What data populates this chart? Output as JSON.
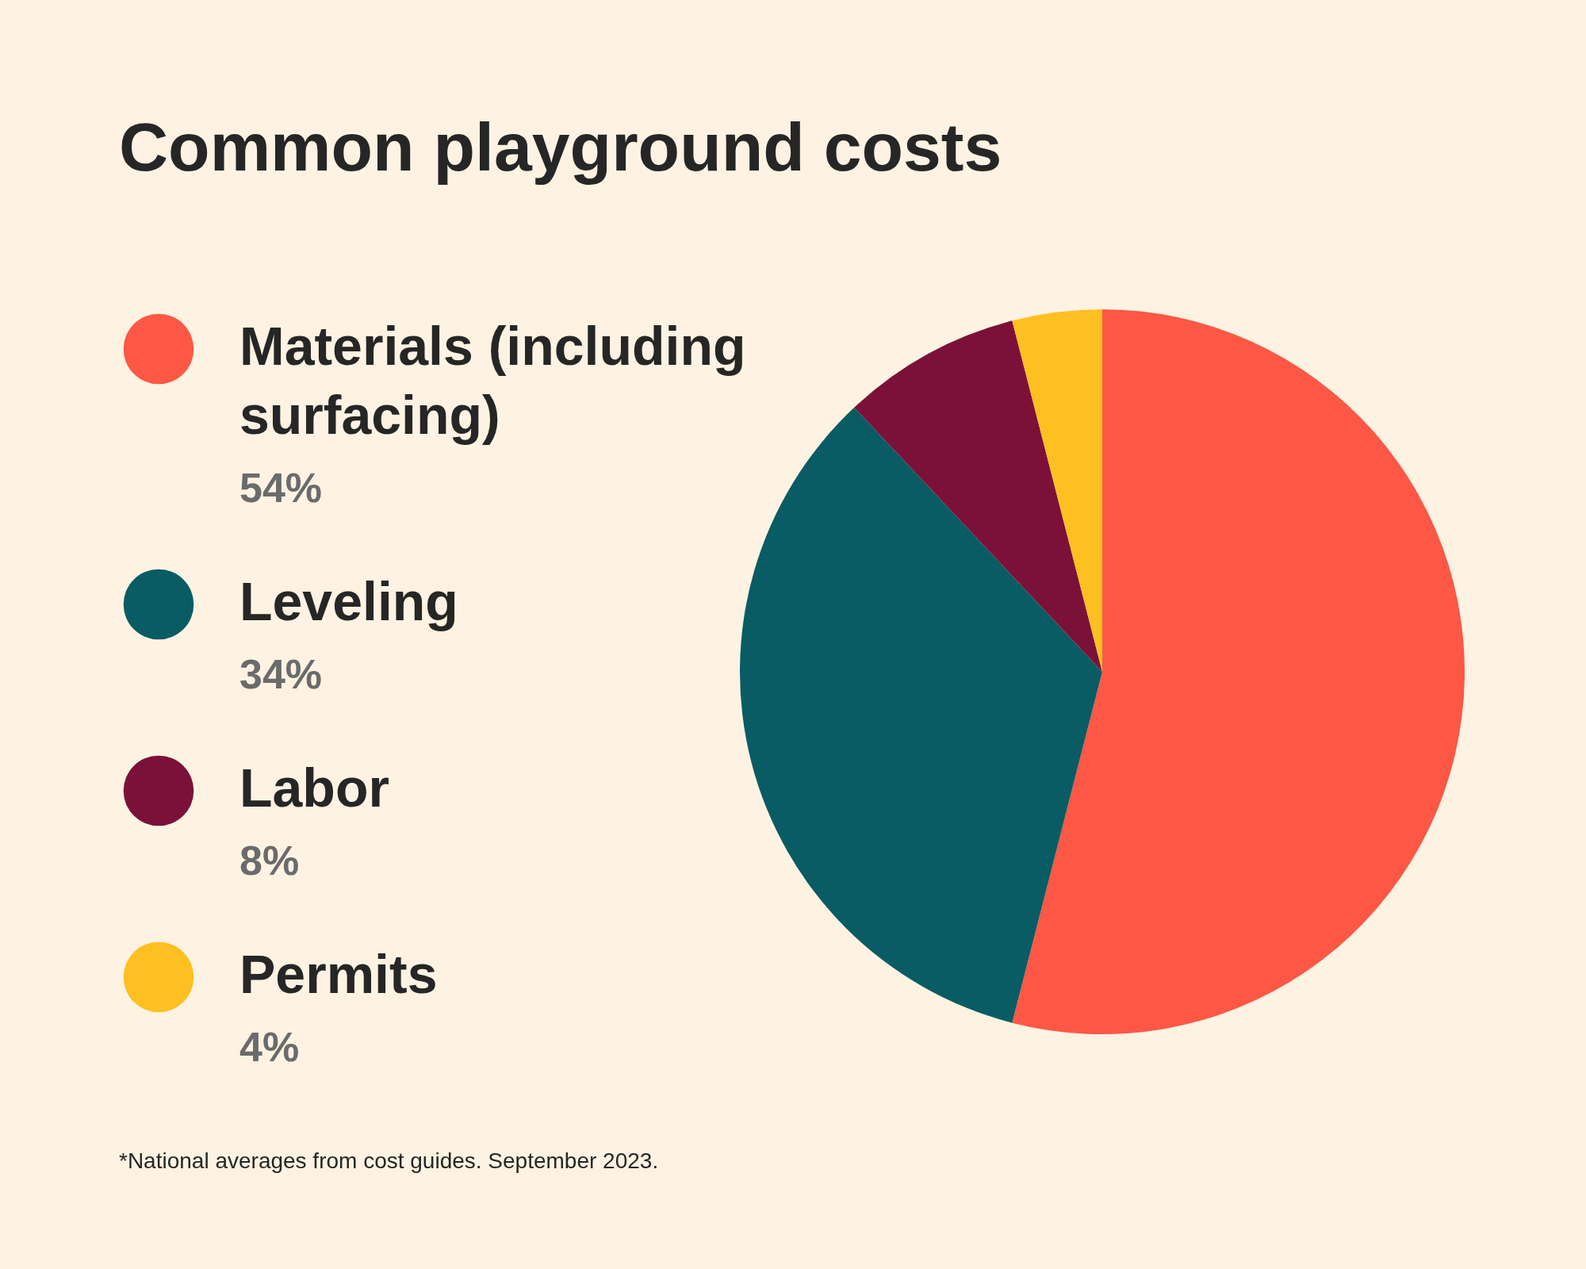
{
  "chart_data": {
    "type": "pie",
    "title": "Common playground costs",
    "categories": [
      "Materials (including surfacing)",
      "Leveling",
      "Labor",
      "Permits"
    ],
    "values": [
      54,
      34,
      8,
      4
    ],
    "value_labels": [
      "54%",
      "34%",
      "8%",
      "4%"
    ],
    "colors": [
      "#fe5745",
      "#095c63",
      "#7b1139",
      "#fec020"
    ],
    "legend": "left",
    "annotations": [
      "*National averages from cost guides. September 2023."
    ]
  }
}
